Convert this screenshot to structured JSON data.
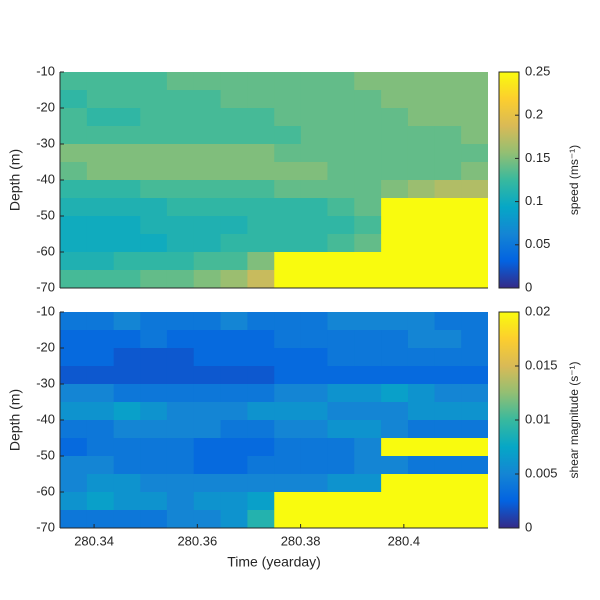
{
  "chart_data": [
    {
      "type": "heatmap",
      "colormap": "parula",
      "colorbar_label": "speed (ms⁻¹)",
      "ylabel": "Depth (m)",
      "xlim": [
        280.3334,
        280.4163
      ],
      "ylim": [
        -70,
        -10
      ],
      "yticks": [
        -70,
        -60,
        -50,
        -40,
        -30,
        -20,
        -10
      ],
      "clim": [
        0,
        0.25
      ],
      "cticks": [
        0,
        0.05,
        0.1,
        0.15,
        0.2,
        0.25
      ],
      "x": [
        280.336,
        280.3412,
        280.3464,
        280.3515,
        280.3567,
        280.3619,
        280.3671,
        280.3723,
        280.3775,
        280.3826,
        280.3878,
        280.393,
        280.3982,
        280.4034,
        280.4085,
        280.4137
      ],
      "y": [
        -12.5,
        -17.5,
        -22.5,
        -27.5,
        -32.5,
        -37.5,
        -42.5,
        -47.5,
        -52.5,
        -57.5,
        -62.5,
        -67.5
      ],
      "z": [
        [
          0.13,
          0.13,
          0.13,
          0.13,
          0.14,
          0.14,
          0.14,
          0.14,
          0.14,
          0.14,
          0.14,
          0.15,
          0.15,
          0.15,
          0.15,
          0.15
        ],
        [
          0.12,
          0.13,
          0.13,
          0.13,
          0.13,
          0.13,
          0.14,
          0.14,
          0.14,
          0.14,
          0.14,
          0.14,
          0.15,
          0.15,
          0.15,
          0.15
        ],
        [
          0.13,
          0.12,
          0.12,
          0.13,
          0.13,
          0.13,
          0.13,
          0.13,
          0.14,
          0.14,
          0.14,
          0.14,
          0.14,
          0.15,
          0.15,
          0.15
        ],
        [
          0.13,
          0.13,
          0.13,
          0.13,
          0.13,
          0.13,
          0.13,
          0.13,
          0.13,
          0.14,
          0.14,
          0.14,
          0.14,
          0.14,
          0.14,
          0.15
        ],
        [
          0.15,
          0.15,
          0.15,
          0.15,
          0.15,
          0.15,
          0.15,
          0.15,
          0.14,
          0.14,
          0.14,
          0.14,
          0.14,
          0.14,
          0.14,
          0.14
        ],
        [
          0.14,
          0.15,
          0.15,
          0.15,
          0.15,
          0.15,
          0.15,
          0.15,
          0.15,
          0.15,
          0.14,
          0.14,
          0.14,
          0.14,
          0.14,
          0.15
        ],
        [
          0.12,
          0.12,
          0.12,
          0.13,
          0.13,
          0.13,
          0.13,
          0.13,
          0.14,
          0.14,
          0.14,
          0.14,
          0.15,
          0.16,
          0.17,
          0.17
        ],
        [
          0.11,
          0.11,
          0.11,
          0.11,
          0.12,
          0.12,
          0.12,
          0.12,
          0.12,
          0.12,
          0.13,
          0.14,
          0.25,
          0.25,
          0.25,
          0.25
        ],
        [
          0.1,
          0.1,
          0.1,
          0.11,
          0.11,
          0.11,
          0.11,
          0.12,
          0.12,
          0.12,
          0.12,
          0.13,
          0.25,
          0.25,
          0.25,
          0.25
        ],
        [
          0.1,
          0.1,
          0.1,
          0.1,
          0.11,
          0.11,
          0.12,
          0.12,
          0.12,
          0.12,
          0.13,
          0.14,
          0.25,
          0.25,
          0.25,
          0.25
        ],
        [
          0.11,
          0.11,
          0.12,
          0.12,
          0.12,
          0.13,
          0.13,
          0.15,
          0.25,
          0.25,
          0.25,
          0.25,
          0.25,
          0.25,
          0.25,
          0.25
        ],
        [
          0.13,
          0.13,
          0.13,
          0.14,
          0.14,
          0.15,
          0.16,
          0.18,
          0.25,
          0.25,
          0.25,
          0.25,
          0.25,
          0.25,
          0.25,
          0.25
        ]
      ]
    },
    {
      "type": "heatmap",
      "colormap": "parula",
      "colorbar_label": "shear magnitude (s⁻¹)",
      "ylabel": "Depth (m)",
      "xlabel": "Time (yearday)",
      "xlim": [
        280.3334,
        280.4163
      ],
      "xticks": [
        280.34,
        280.36,
        280.38,
        280.4
      ],
      "ylim": [
        -70,
        -10
      ],
      "yticks": [
        -70,
        -60,
        -50,
        -40,
        -30,
        -20,
        -10
      ],
      "clim": [
        0,
        0.02
      ],
      "cticks": [
        0,
        0.005,
        0.01,
        0.015,
        0.02
      ],
      "x": [
        280.336,
        280.3412,
        280.3464,
        280.3515,
        280.3567,
        280.3619,
        280.3671,
        280.3723,
        280.3775,
        280.3826,
        280.3878,
        280.393,
        280.3982,
        280.4034,
        280.4085,
        280.4137
      ],
      "y": [
        -12.5,
        -17.5,
        -22.5,
        -27.5,
        -32.5,
        -37.5,
        -42.5,
        -47.5,
        -52.5,
        -57.5,
        -62.5,
        -67.5
      ],
      "z": [
        [
          0.004,
          0.004,
          0.005,
          0.004,
          0.004,
          0.004,
          0.005,
          0.004,
          0.004,
          0.004,
          0.005,
          0.005,
          0.005,
          0.005,
          0.004,
          0.004
        ],
        [
          0.003,
          0.003,
          0.003,
          0.004,
          0.003,
          0.003,
          0.003,
          0.003,
          0.004,
          0.004,
          0.004,
          0.004,
          0.004,
          0.005,
          0.005,
          0.004
        ],
        [
          0.003,
          0.003,
          0.002,
          0.002,
          0.002,
          0.003,
          0.003,
          0.003,
          0.003,
          0.003,
          0.004,
          0.004,
          0.004,
          0.004,
          0.004,
          0.004
        ],
        [
          0.002,
          0.002,
          0.002,
          0.002,
          0.002,
          0.002,
          0.002,
          0.002,
          0.003,
          0.003,
          0.003,
          0.003,
          0.003,
          0.003,
          0.003,
          0.003
        ],
        [
          0.005,
          0.005,
          0.004,
          0.004,
          0.004,
          0.004,
          0.004,
          0.004,
          0.005,
          0.005,
          0.006,
          0.006,
          0.007,
          0.006,
          0.005,
          0.005
        ],
        [
          0.006,
          0.006,
          0.007,
          0.006,
          0.005,
          0.005,
          0.005,
          0.006,
          0.006,
          0.006,
          0.005,
          0.005,
          0.005,
          0.006,
          0.006,
          0.006
        ],
        [
          0.004,
          0.004,
          0.005,
          0.005,
          0.005,
          0.005,
          0.004,
          0.004,
          0.005,
          0.005,
          0.006,
          0.006,
          0.005,
          0.004,
          0.004,
          0.004
        ],
        [
          0.003,
          0.004,
          0.004,
          0.004,
          0.004,
          0.003,
          0.003,
          0.003,
          0.004,
          0.004,
          0.004,
          0.005,
          0.02,
          0.02,
          0.02,
          0.02
        ],
        [
          0.005,
          0.005,
          0.004,
          0.004,
          0.004,
          0.003,
          0.003,
          0.004,
          0.004,
          0.004,
          0.004,
          0.005,
          0.005,
          0.004,
          0.004,
          0.004
        ],
        [
          0.005,
          0.006,
          0.006,
          0.005,
          0.005,
          0.005,
          0.005,
          0.005,
          0.005,
          0.005,
          0.006,
          0.006,
          0.02,
          0.02,
          0.02,
          0.02
        ],
        [
          0.006,
          0.007,
          0.006,
          0.006,
          0.005,
          0.006,
          0.006,
          0.007,
          0.02,
          0.02,
          0.02,
          0.02,
          0.02,
          0.02,
          0.02,
          0.02
        ],
        [
          0.004,
          0.004,
          0.004,
          0.004,
          0.005,
          0.005,
          0.006,
          0.009,
          0.02,
          0.02,
          0.02,
          0.02,
          0.02,
          0.02,
          0.02,
          0.02
        ]
      ]
    }
  ]
}
